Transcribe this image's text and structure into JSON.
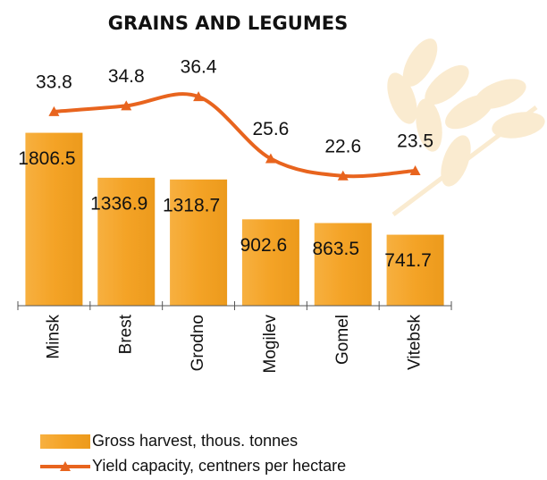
{
  "chart_data": {
    "type": "bar",
    "title": "GRAINS AND LEGUMES",
    "categories": [
      "Minsk",
      "Brest",
      "Grodno",
      "Mogilev",
      "Gomel",
      "Vitebsk"
    ],
    "ylim": [
      0,
      2400
    ],
    "y2lim": [
      0,
      40
    ],
    "series": [
      {
        "name": "Gross harvest, thous. tonnes",
        "type": "bar",
        "color": "#f4a326",
        "values": [
          1806.5,
          1336.9,
          1318.7,
          902.6,
          863.5,
          741.7
        ]
      },
      {
        "name": "Yield capacity, centners per hectare",
        "type": "line",
        "axis": "y2",
        "color": "#e8641e",
        "values": [
          33.8,
          34.8,
          36.4,
          25.6,
          22.6,
          23.5
        ]
      }
    ]
  }
}
